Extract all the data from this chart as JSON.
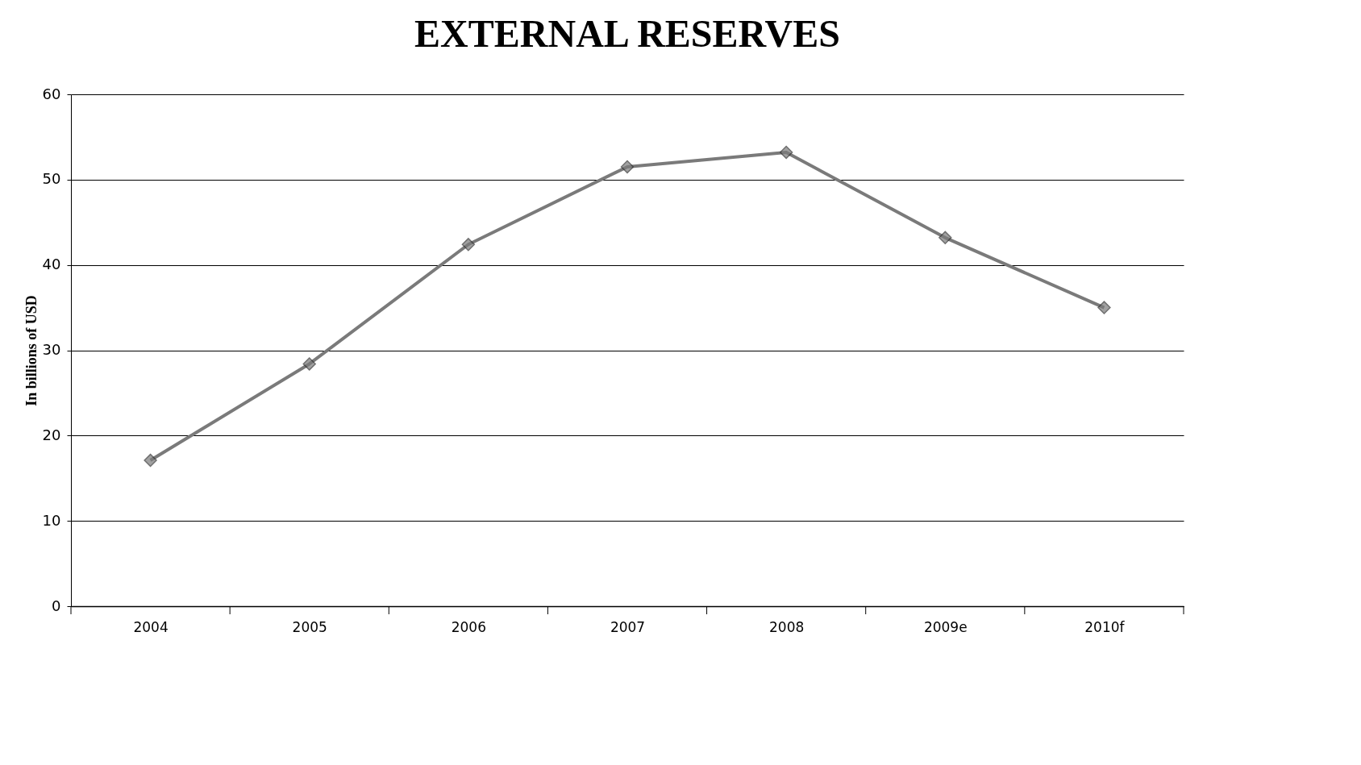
{
  "chart_data": {
    "type": "line",
    "title": "EXTERNAL RESERVES",
    "ylabel": "In billions  of USD",
    "categories": [
      "2004",
      "2005",
      "2006",
      "2007",
      "2008",
      "2009e",
      "2010f"
    ],
    "series": [
      {
        "color": "#7a7a7a",
        "values": [
          17.1,
          28.4,
          42.4,
          51.5,
          53.2,
          43.2,
          35.0
        ]
      }
    ],
    "ylim": [
      0,
      60
    ],
    "yticks": [
      0,
      10,
      20,
      30,
      40,
      50,
      60
    ],
    "grid": "y",
    "marker": "diamond",
    "line_style": "solid"
  }
}
